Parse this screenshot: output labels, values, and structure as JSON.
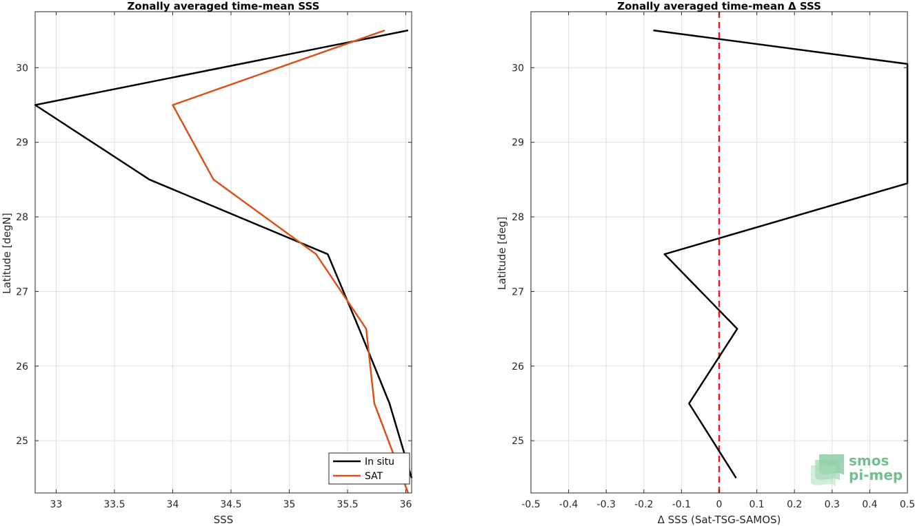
{
  "chart_data": [
    {
      "type": "line",
      "title": "Zonally averaged time-mean SSS",
      "xlabel": "SSS",
      "ylabel": "Latitude [degN]",
      "xlim": [
        32.82,
        36.05
      ],
      "ylim": [
        24.3,
        30.75
      ],
      "xticks": [
        33,
        33.5,
        34,
        34.5,
        35,
        35.5,
        36
      ],
      "xtick_labels": [
        "33",
        "33.5",
        "34",
        "34.5",
        "35",
        "35.5",
        "36"
      ],
      "yticks": [
        25,
        26,
        27,
        28,
        29,
        30
      ],
      "ytick_labels": [
        "25",
        "26",
        "27",
        "28",
        "29",
        "30"
      ],
      "grid": true,
      "legend": "bottom-right",
      "series": [
        {
          "name": "In situ",
          "color": "#000000",
          "points": [
            [
              36.02,
              30.5
            ],
            [
              32.82,
              29.5
            ],
            [
              33.8,
              28.5
            ],
            [
              35.33,
              27.5
            ],
            [
              35.6,
              26.5
            ],
            [
              35.86,
              25.5
            ],
            [
              36.05,
              24.5
            ]
          ]
        },
        {
          "name": "SAT",
          "color": "#d95319",
          "points": [
            [
              35.82,
              30.5
            ],
            [
              34.0,
              29.5
            ],
            [
              34.35,
              28.5
            ],
            [
              35.23,
              27.5
            ],
            [
              35.66,
              26.5
            ],
            [
              35.73,
              25.5
            ],
            [
              36.02,
              24.3
            ]
          ]
        }
      ]
    },
    {
      "type": "line",
      "title": "Zonally averaged time-mean Δ SSS",
      "xlabel": "Δ SSS (Sat-TSG-SAMOS)",
      "ylabel": "Latitude [deg]",
      "xlim": [
        -0.5,
        0.5
      ],
      "ylim": [
        24.3,
        30.75
      ],
      "xticks": [
        -0.5,
        -0.4,
        -0.3,
        -0.2,
        -0.1,
        0,
        0.1,
        0.2,
        0.3,
        0.4,
        0.5
      ],
      "xtick_labels": [
        "-0.5",
        "-0.4",
        "-0.3",
        "-0.2",
        "-0.1",
        "0",
        "0.1",
        "0.2",
        "0.3",
        "0.4",
        "0.5"
      ],
      "yticks": [
        25,
        26,
        27,
        28,
        29,
        30
      ],
      "ytick_labels": [
        "25",
        "26",
        "27",
        "28",
        "29",
        "30"
      ],
      "grid": true,
      "reference_line": {
        "x": 0,
        "color": "#e41a1c",
        "style": "dashed"
      },
      "series": [
        {
          "color": "#000000",
          "points": [
            [
              -0.175,
              30.5
            ],
            [
              0.5,
              30.05
            ],
            [
              0.5,
              28.45
            ],
            [
              -0.145,
              27.5
            ],
            [
              0.048,
              26.5
            ],
            [
              -0.08,
              25.5
            ],
            [
              0.045,
              24.5
            ]
          ]
        }
      ]
    }
  ],
  "logo": {
    "line1": "smos",
    "line2": "pi-mep",
    "color": "#6fbf8f"
  }
}
